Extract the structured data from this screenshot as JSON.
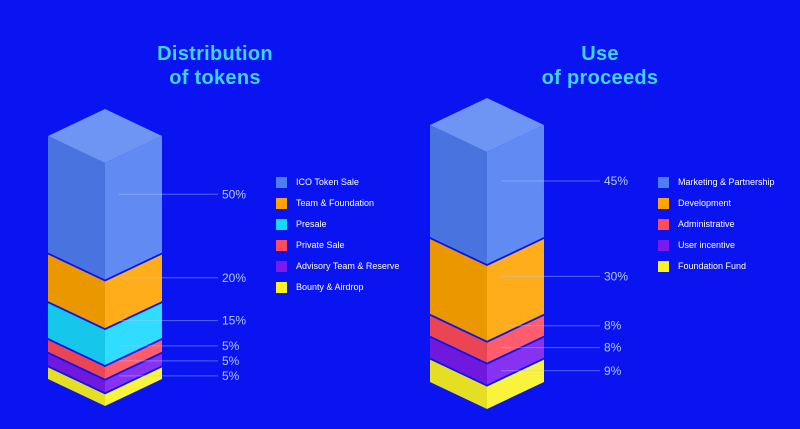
{
  "chart_data": [
    {
      "type": "bar",
      "title_lines": [
        "Distribution",
        "of tokens"
      ],
      "categories": [
        "ICO Token Sale",
        "Team & Foundation",
        "Presale",
        "Private Sale",
        "Advisory Team & Reserve",
        "Bounty & Airdrop"
      ],
      "values": [
        50,
        20,
        15,
        5,
        5,
        5
      ],
      "labels": [
        "50%",
        "20%",
        "15%",
        "5%",
        "5%",
        "5%"
      ],
      "colors": [
        "#4f7ef2",
        "#ffa400",
        "#19d8ff",
        "#ff4b5a",
        "#7a1aef",
        "#f8f226"
      ],
      "legend_position": "right",
      "grid": false
    },
    {
      "type": "bar",
      "title_lines": [
        "Use",
        "of proceeds"
      ],
      "categories": [
        "Marketing & Partnership",
        "Development",
        "Administrative",
        "User incentive",
        "Foundation Fund"
      ],
      "values": [
        45,
        30,
        8,
        8,
        9
      ],
      "labels": [
        "45%",
        "30%",
        "8%",
        "8%",
        "9%"
      ],
      "colors": [
        "#4f7ef2",
        "#ffa400",
        "#ff4b5a",
        "#7a1aef",
        "#f8f226"
      ],
      "legend_position": "right",
      "grid": false
    }
  ]
}
